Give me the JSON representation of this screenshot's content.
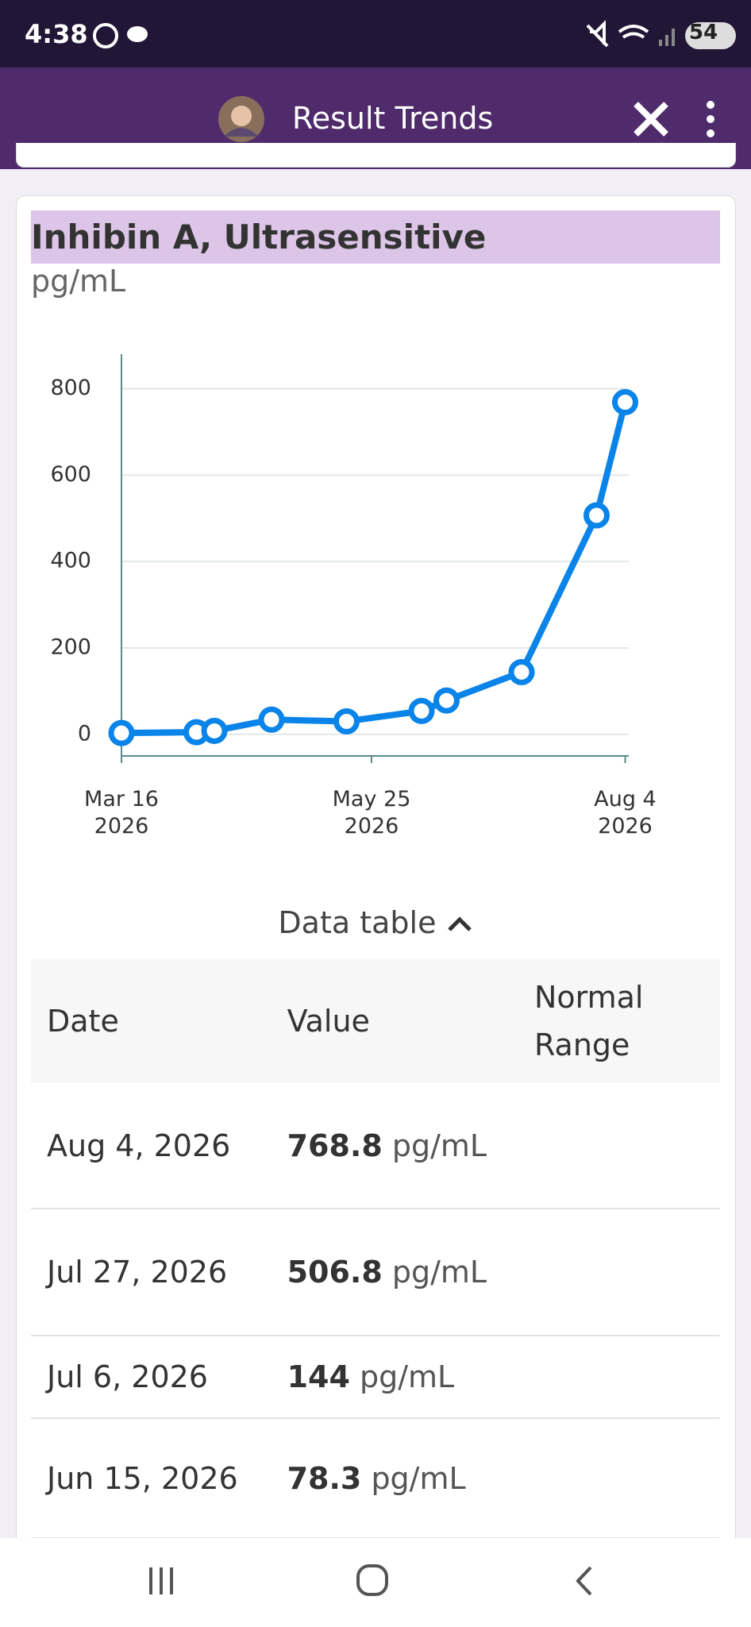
{
  "status_bar": {
    "time": "4:38",
    "battery": "54"
  },
  "app_bar": {
    "title": "Result Trends"
  },
  "chart_data": {
    "type": "line",
    "title": "Inhibin A, Ultrasensitive",
    "subtitle": "pg/mL",
    "x": [
      "2026-03-16",
      "2026-04-06",
      "2026-04-11",
      "2026-04-27",
      "2026-05-18",
      "2026-06-08",
      "2026-06-15",
      "2026-07-06",
      "2026-07-27",
      "2026-08-04"
    ],
    "values": [
      3,
      5,
      8,
      34,
      30,
      54,
      78.3,
      144,
      506.8,
      768.8
    ],
    "color": "#0a84e8",
    "xlim": [
      "2026-03-16",
      "2026-08-05"
    ],
    "xticks": [
      {
        "value": "2026-03-16",
        "label": "Mar 16 2026"
      },
      {
        "value": "2026-05-25",
        "label": "May 25 2026"
      },
      {
        "value": "2026-08-04",
        "label": "Aug 4 2026"
      }
    ],
    "ylim": [
      -50,
      880
    ],
    "yticks": [
      0,
      200,
      400,
      600,
      800
    ],
    "grid": true
  },
  "data_table": {
    "toggle": "Data table",
    "headers": [
      "Date",
      "Value",
      "Normal Range"
    ],
    "rows": [
      {
        "date": "Aug 4, 2026",
        "value": "768.8",
        "unit": "pg/mL"
      },
      {
        "date": "Jul 27, 2026",
        "value": "506.8",
        "unit": "pg/mL"
      },
      {
        "date": "Jul 6, 2026",
        "value": "144",
        "unit": "pg/mL"
      },
      {
        "date": "Jun 15, 2026",
        "value": "78.3",
        "unit": "pg/mL"
      }
    ]
  }
}
